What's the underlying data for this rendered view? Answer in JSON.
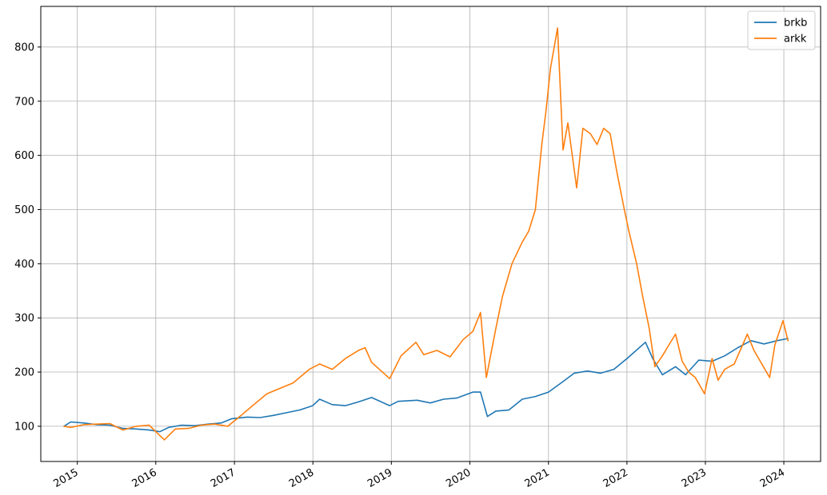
{
  "chart_data": {
    "type": "line",
    "title": "",
    "xlabel": "",
    "ylabel": "",
    "xlim": [
      "2014-07-15",
      "2024-06-20"
    ],
    "ylim": [
      35,
      875
    ],
    "grid": true,
    "legend_position": "top-right",
    "x_ticks": [
      "2015",
      "2016",
      "2017",
      "2018",
      "2019",
      "2020",
      "2021",
      "2022",
      "2023",
      "2024"
    ],
    "y_ticks": [
      100,
      200,
      300,
      400,
      500,
      600,
      700,
      800
    ],
    "series": [
      {
        "name": "brkb",
        "color": "#1f77b4",
        "points": [
          [
            "2014-10-31",
            100
          ],
          [
            "2014-12-01",
            108
          ],
          [
            "2015-02-01",
            106
          ],
          [
            "2015-04-01",
            103
          ],
          [
            "2015-06-01",
            102
          ],
          [
            "2015-08-01",
            96
          ],
          [
            "2015-10-01",
            95
          ],
          [
            "2015-12-01",
            93
          ],
          [
            "2016-01-20",
            90
          ],
          [
            "2016-03-01",
            98
          ],
          [
            "2016-05-01",
            102
          ],
          [
            "2016-07-01",
            101
          ],
          [
            "2016-09-01",
            104
          ],
          [
            "2016-11-01",
            106
          ],
          [
            "2016-12-20",
            114
          ],
          [
            "2017-03-01",
            117
          ],
          [
            "2017-05-01",
            116
          ],
          [
            "2017-07-01",
            120
          ],
          [
            "2017-09-01",
            125
          ],
          [
            "2017-11-01",
            130
          ],
          [
            "2017-12-31",
            138
          ],
          [
            "2018-02-01",
            150
          ],
          [
            "2018-04-01",
            140
          ],
          [
            "2018-06-01",
            138
          ],
          [
            "2018-08-01",
            145
          ],
          [
            "2018-10-01",
            153
          ],
          [
            "2018-12-24",
            138
          ],
          [
            "2019-02-01",
            146
          ],
          [
            "2019-05-01",
            148
          ],
          [
            "2019-07-01",
            143
          ],
          [
            "2019-09-01",
            150
          ],
          [
            "2019-11-01",
            152
          ],
          [
            "2020-01-15",
            163
          ],
          [
            "2020-02-20",
            163
          ],
          [
            "2020-03-23",
            118
          ],
          [
            "2020-05-01",
            128
          ],
          [
            "2020-07-01",
            130
          ],
          [
            "2020-09-01",
            150
          ],
          [
            "2020-11-01",
            155
          ],
          [
            "2021-01-01",
            163
          ],
          [
            "2021-03-01",
            180
          ],
          [
            "2021-05-01",
            198
          ],
          [
            "2021-07-01",
            202
          ],
          [
            "2021-09-01",
            198
          ],
          [
            "2021-11-01",
            205
          ],
          [
            "2022-01-01",
            225
          ],
          [
            "2022-03-28",
            255
          ],
          [
            "2022-05-01",
            225
          ],
          [
            "2022-06-15",
            195
          ],
          [
            "2022-08-15",
            210
          ],
          [
            "2022-10-01",
            195
          ],
          [
            "2022-12-01",
            222
          ],
          [
            "2023-02-01",
            220
          ],
          [
            "2023-04-01",
            230
          ],
          [
            "2023-06-01",
            245
          ],
          [
            "2023-08-01",
            258
          ],
          [
            "2023-10-01",
            252
          ],
          [
            "2023-12-01",
            258
          ],
          [
            "2024-01-20",
            262
          ]
        ]
      },
      {
        "name": "arkk",
        "color": "#ff7f0e",
        "points": [
          [
            "2014-10-31",
            100
          ],
          [
            "2014-12-01",
            98
          ],
          [
            "2015-02-01",
            103
          ],
          [
            "2015-04-01",
            104
          ],
          [
            "2015-06-01",
            105
          ],
          [
            "2015-08-01",
            93
          ],
          [
            "2015-10-01",
            100
          ],
          [
            "2015-12-01",
            102
          ],
          [
            "2016-02-10",
            75
          ],
          [
            "2016-04-01",
            95
          ],
          [
            "2016-06-01",
            96
          ],
          [
            "2016-08-01",
            102
          ],
          [
            "2016-10-01",
            104
          ],
          [
            "2016-12-01",
            100
          ],
          [
            "2017-02-01",
            120
          ],
          [
            "2017-04-01",
            140
          ],
          [
            "2017-06-01",
            160
          ],
          [
            "2017-08-01",
            170
          ],
          [
            "2017-10-01",
            180
          ],
          [
            "2017-12-15",
            205
          ],
          [
            "2018-02-01",
            215
          ],
          [
            "2018-04-01",
            205
          ],
          [
            "2018-06-01",
            225
          ],
          [
            "2018-08-01",
            240
          ],
          [
            "2018-09-01",
            245
          ],
          [
            "2018-10-01",
            218
          ],
          [
            "2018-12-24",
            188
          ],
          [
            "2019-02-15",
            230
          ],
          [
            "2019-04-25",
            255
          ],
          [
            "2019-06-01",
            232
          ],
          [
            "2019-08-01",
            240
          ],
          [
            "2019-10-01",
            228
          ],
          [
            "2019-12-01",
            260
          ],
          [
            "2020-01-15",
            275
          ],
          [
            "2020-02-20",
            310
          ],
          [
            "2020-03-18",
            190
          ],
          [
            "2020-05-01",
            280
          ],
          [
            "2020-06-01",
            340
          ],
          [
            "2020-07-15",
            400
          ],
          [
            "2020-09-01",
            440
          ],
          [
            "2020-10-01",
            460
          ],
          [
            "2020-11-01",
            500
          ],
          [
            "2020-12-01",
            620
          ],
          [
            "2020-12-20",
            680
          ],
          [
            "2021-01-10",
            760
          ],
          [
            "2021-02-12",
            835
          ],
          [
            "2021-03-10",
            610
          ],
          [
            "2021-04-01",
            660
          ],
          [
            "2021-05-12",
            540
          ],
          [
            "2021-06-10",
            650
          ],
          [
            "2021-07-15",
            640
          ],
          [
            "2021-08-15",
            620
          ],
          [
            "2021-09-15",
            650
          ],
          [
            "2021-10-15",
            640
          ],
          [
            "2021-11-15",
            570
          ],
          [
            "2021-12-20",
            500
          ],
          [
            "2022-01-10",
            460
          ],
          [
            "2022-02-15",
            400
          ],
          [
            "2022-03-15",
            340
          ],
          [
            "2022-04-15",
            280
          ],
          [
            "2022-05-11",
            210
          ],
          [
            "2022-06-15",
            230
          ],
          [
            "2022-07-15",
            250
          ],
          [
            "2022-08-15",
            270
          ],
          [
            "2022-09-15",
            220
          ],
          [
            "2022-10-15",
            200
          ],
          [
            "2022-11-15",
            190
          ],
          [
            "2022-12-28",
            160
          ],
          [
            "2023-02-01",
            225
          ],
          [
            "2023-03-01",
            185
          ],
          [
            "2023-04-01",
            205
          ],
          [
            "2023-05-15",
            215
          ],
          [
            "2023-07-15",
            270
          ],
          [
            "2023-08-15",
            240
          ],
          [
            "2023-10-27",
            190
          ],
          [
            "2023-11-20",
            250
          ],
          [
            "2023-12-28",
            295
          ],
          [
            "2024-01-20",
            258
          ]
        ]
      }
    ]
  }
}
